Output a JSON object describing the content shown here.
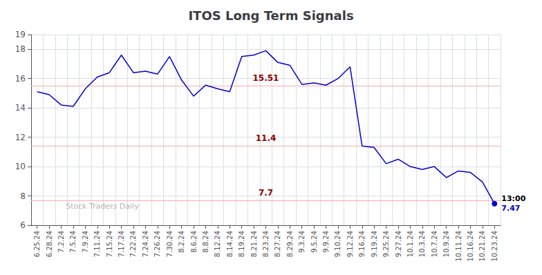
{
  "chart_data": {
    "type": "line",
    "title": "ITOS Long Term Signals",
    "categories": [
      "6.25.24",
      "6.28.24",
      "7.2.24",
      "7.5.24",
      "7.9.24",
      "7.11.24",
      "7.15.24",
      "7.17.24",
      "7.22.24",
      "7.24.24",
      "7.26.24",
      "7.30.24",
      "8.2.24",
      "8.6.24",
      "8.8.24",
      "8.12.24",
      "8.14.24",
      "8.19.24",
      "8.21.24",
      "8.23.24",
      "8.27.24",
      "8.29.24",
      "9.3.24",
      "9.5.24",
      "9.9.24",
      "9.10.24",
      "9.12.24",
      "9.16.24",
      "9.19.24",
      "9.25.24",
      "9.27.24",
      "10.1.24",
      "10.3.24",
      "10.7.24",
      "10.9.24",
      "10.11.24",
      "10.16.24",
      "10.21.24",
      "10.23.24"
    ],
    "values": [
      15.1,
      14.9,
      14.2,
      14.1,
      15.3,
      16.1,
      16.4,
      17.6,
      16.4,
      16.5,
      16.3,
      17.5,
      15.9,
      14.8,
      15.55,
      15.3,
      15.1,
      17.5,
      17.6,
      17.9,
      17.1,
      16.9,
      15.6,
      15.7,
      15.55,
      16.0,
      16.8,
      11.4,
      11.3,
      10.2,
      10.5,
      10.0,
      9.8,
      10.0,
      9.25,
      9.7,
      9.6,
      8.95,
      7.47
    ],
    "color": "#0000cc",
    "ylim": [
      6,
      19
    ],
    "yticks": [
      6,
      8,
      10,
      12,
      14,
      16,
      18
    ],
    "grid": true,
    "hlines": {
      "values": [
        15.51,
        11.4,
        7.7
      ],
      "color": "#ffaaaa",
      "label_color": "#8b0000"
    },
    "last_point": {
      "label": "13:00",
      "value": 7.47
    },
    "watermark": "Stock Traders Daily"
  }
}
